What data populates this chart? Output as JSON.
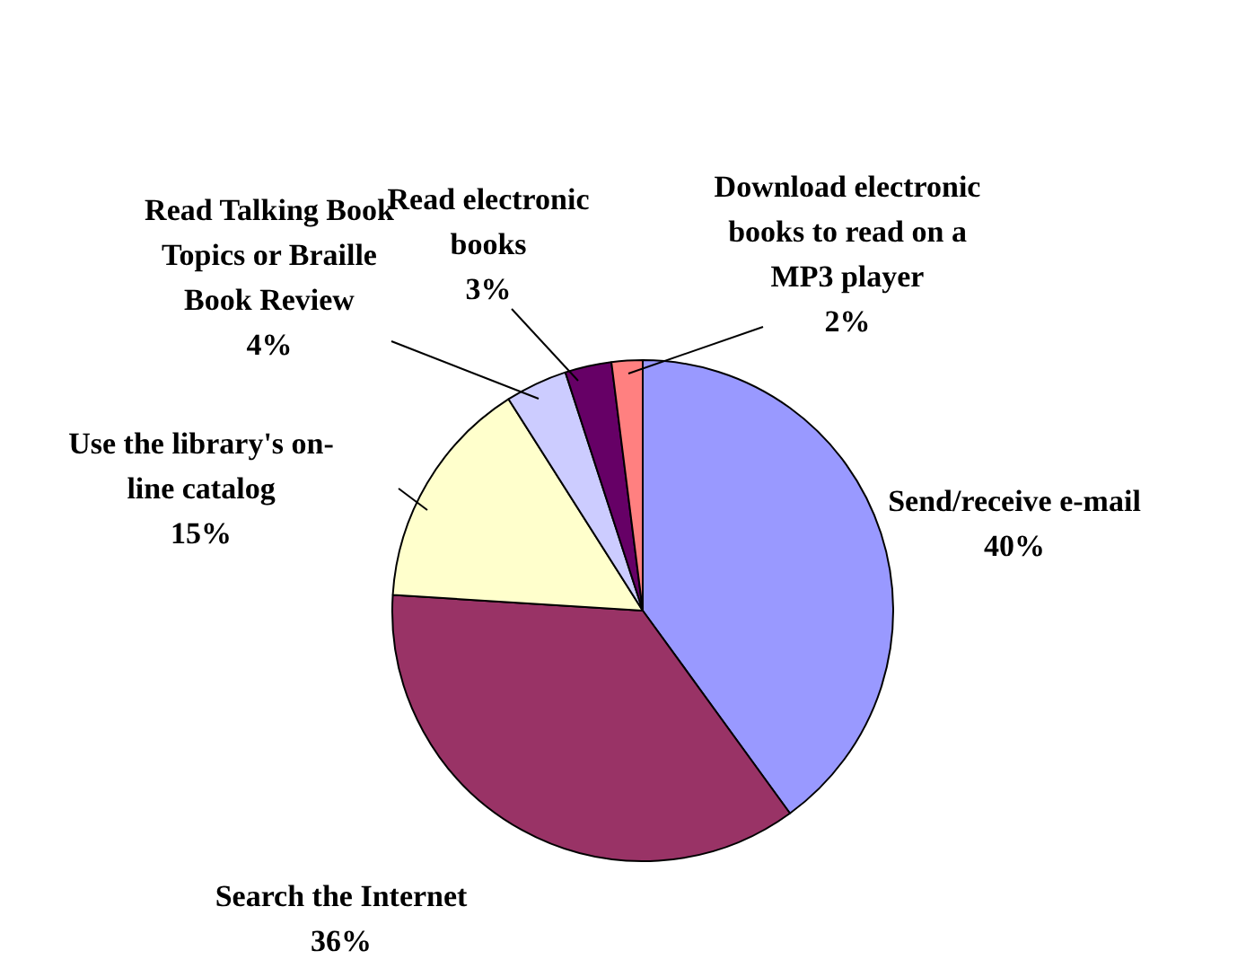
{
  "chart_data": {
    "type": "pie",
    "categories": [
      "Send/receive e-mail",
      "Search the Internet",
      "Use the library's on-line catalog",
      "Read Talking Book Topics or Braille Book Review",
      "Read electronic books",
      "Download electronic books to read on a MP3 player"
    ],
    "values": [
      40,
      36,
      15,
      4,
      3,
      2
    ],
    "value_labels": [
      "40%",
      "36%",
      "15%",
      "4%",
      "3%",
      "2%"
    ],
    "colors": [
      "#9999ff",
      "#993366",
      "#ffffcc",
      "#ccccff",
      "#660066",
      "#ff8080"
    ],
    "legend": false
  }
}
